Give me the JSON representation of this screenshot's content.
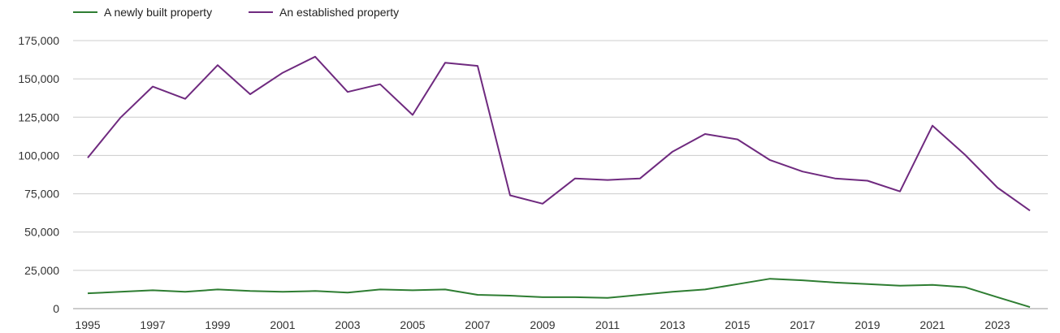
{
  "chart_data": {
    "type": "line",
    "x": [
      1995,
      1996,
      1997,
      1998,
      1999,
      2000,
      2001,
      2002,
      2003,
      2004,
      2005,
      2006,
      2007,
      2008,
      2009,
      2010,
      2011,
      2012,
      2013,
      2014,
      2015,
      2016,
      2017,
      2018,
      2019,
      2020,
      2021,
      2022,
      2023,
      2024
    ],
    "x_tick_labels": [
      "1995",
      "1997",
      "1999",
      "2001",
      "2003",
      "2005",
      "2007",
      "2009",
      "2011",
      "2013",
      "2015",
      "2017",
      "2019",
      "2021",
      "2023"
    ],
    "y_tick_values": [
      0,
      25000,
      50000,
      75000,
      100000,
      125000,
      150000,
      175000
    ],
    "y_tick_labels": [
      "0",
      "25,000",
      "50,000",
      "75,000",
      "100,000",
      "125,000",
      "150,000",
      "175,000"
    ],
    "ylim": [
      0,
      175000
    ],
    "grid": "horizontal",
    "legend_position": "top-left",
    "series": [
      {
        "name": "A newly built property",
        "color": "#2e7d32",
        "values": [
          10000,
          11000,
          12000,
          11000,
          12500,
          11500,
          11000,
          11500,
          10500,
          12500,
          12000,
          12500,
          9000,
          8500,
          7500,
          7500,
          7000,
          9000,
          11000,
          12500,
          16000,
          19500,
          18500,
          17000,
          16000,
          15000,
          15500,
          14000,
          7500,
          1000
        ]
      },
      {
        "name": "An established property",
        "color": "#6f2a7f",
        "values": [
          98500,
          124500,
          145000,
          137000,
          159000,
          140000,
          154000,
          164500,
          141500,
          146500,
          126500,
          160500,
          158500,
          74000,
          68500,
          85000,
          84000,
          85000,
          102500,
          114000,
          110500,
          97000,
          89500,
          85000,
          83500,
          76500,
          119500,
          100500,
          79000,
          64000
        ]
      }
    ]
  }
}
